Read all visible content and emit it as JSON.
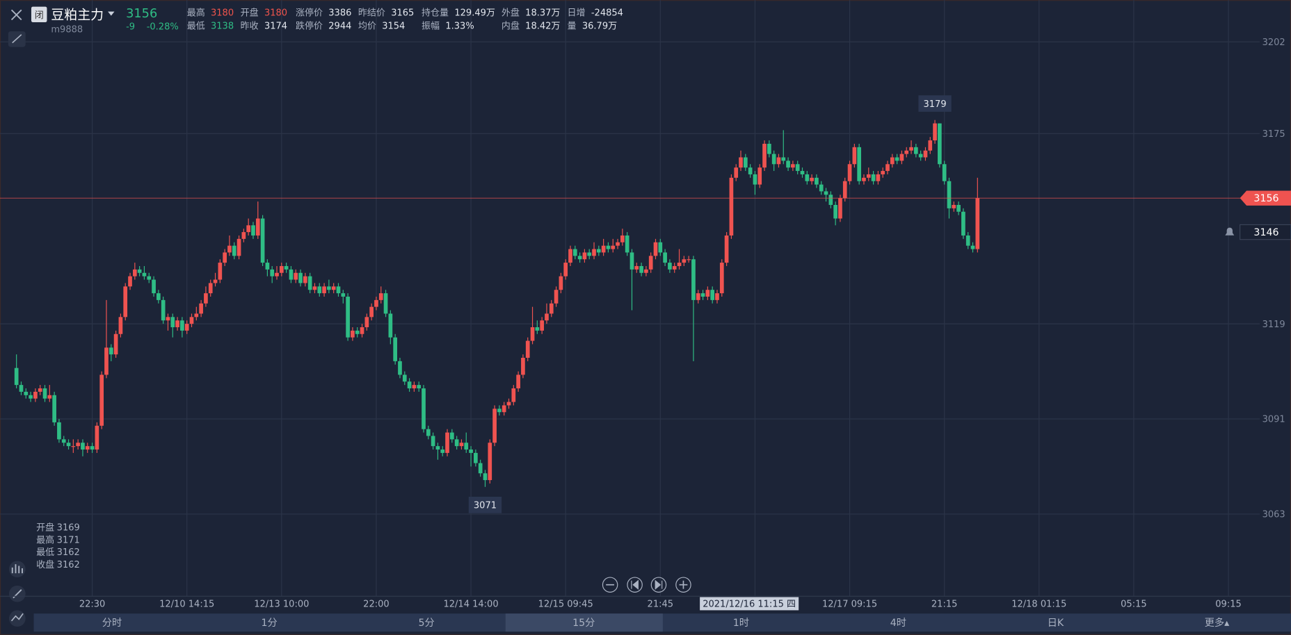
{
  "header": {
    "status": "闭",
    "name": "豆粕主力",
    "code": "m9888",
    "price": "3156",
    "change": "-9",
    "change_pct": "-0.28%",
    "rows": [
      [
        {
          "label": "最高",
          "value": "3180",
          "color": "#f0544c"
        },
        {
          "label": "开盘",
          "value": "3180",
          "color": "#f0544c"
        },
        {
          "label": "涨停价",
          "value": "3386"
        },
        {
          "label": "昨结价",
          "value": "3165"
        },
        {
          "label": "持仓量",
          "value": "129.49万"
        },
        {
          "label": "外盘",
          "value": "18.37万"
        },
        {
          "label": "日增",
          "value": "-24854"
        }
      ],
      [
        {
          "label": "最低",
          "value": "3138",
          "color": "#2fbd85"
        },
        {
          "label": "昨收",
          "value": "3174"
        },
        {
          "label": "跌停价",
          "value": "2944"
        },
        {
          "label": "均价",
          "value": "3154"
        },
        {
          "label": "振幅",
          "value": "1.33%"
        },
        {
          "label": "内盘",
          "value": "18.42万"
        },
        {
          "label": "量",
          "value": "36.79万"
        }
      ]
    ]
  },
  "chart_data": {
    "type": "candlestick",
    "up_color": "#ef5350",
    "down_color": "#2fbd85",
    "ylim": [
      3038.8,
      3214.3
    ],
    "yticks": [
      3202,
      3175,
      3119,
      3091,
      3063
    ],
    "grid": true,
    "time_labels": [
      "22:30",
      "12/10 14:15",
      "12/13 10:00",
      "22:00",
      "12/14 14:00",
      "12/15 09:45",
      "21:45",
      null,
      "12/17 09:15",
      "21:15",
      "12/18 01:15",
      "05:15",
      "09:15"
    ],
    "crosshair_label": "2021/12/16 11:15 四",
    "alert_price": 3146,
    "open": [
      3106,
      3101,
      3099,
      3098,
      3097,
      3099,
      3100,
      3097,
      3098,
      3090,
      3085,
      3084,
      3083,
      3083,
      3084,
      3082,
      3083,
      3082,
      3089,
      3104,
      3112,
      3110,
      3116,
      3121,
      3130,
      3133,
      3135,
      3134,
      3133,
      3132,
      3128,
      3126,
      3120,
      3121,
      3118,
      3120,
      3117,
      3119,
      3121,
      3122,
      3125,
      3128,
      3131,
      3132,
      3137,
      3140,
      3142,
      3139,
      3144,
      3146,
      3148,
      3145,
      3150,
      3137,
      3135,
      3133,
      3134,
      3136,
      3135,
      3132,
      3134,
      3131,
      3133,
      3129,
      3130,
      3128,
      3130,
      3129,
      3130,
      3128,
      3127,
      3115,
      3117,
      3116,
      3118,
      3121,
      3124,
      3126,
      3128,
      3122,
      3115,
      3108,
      3104,
      3102,
      3100,
      3101,
      3100,
      3088,
      3086,
      3083,
      3082,
      3081,
      3087,
      3085,
      3083,
      3084,
      3082,
      3081,
      3078,
      3075,
      3073,
      3084,
      3094,
      3093,
      3095,
      3096,
      3100,
      3104,
      3109,
      3114,
      3118,
      3117,
      3120,
      3122,
      3125,
      3129,
      3133,
      3137,
      3141,
      3139,
      3138,
      3140,
      3139,
      3141,
      3140,
      3142,
      3141,
      3142,
      3143,
      3145,
      3140,
      3135,
      3136,
      3134,
      3135,
      3139,
      3143,
      3140,
      3137,
      3135,
      3136,
      3137,
      3138,
      3138,
      3126,
      3128,
      3127,
      3129,
      3126,
      3128,
      3137,
      3145,
      3162,
      3165,
      3168,
      3165,
      3163,
      3160,
      3165,
      3172,
      3169,
      3166,
      3168,
      3167,
      3165,
      3166,
      3164,
      3163,
      3161,
      3162,
      3160,
      3158,
      3157,
      3154,
      3150,
      3156,
      3161,
      3166,
      3171,
      3161,
      3162,
      3163,
      3161,
      3163,
      3164,
      3166,
      3168,
      3167,
      3169,
      3170,
      3171,
      3169,
      3168,
      3170,
      3173,
      3178,
      3166,
      3161,
      3153,
      3154,
      3152,
      3145,
      3142,
      3141
    ],
    "high": [
      3110,
      3102,
      3100,
      3099,
      3100,
      3101,
      3101,
      3101,
      3099,
      3091,
      3086,
      3085,
      3085,
      3085,
      3085,
      3084,
      3084,
      3090,
      3105,
      3126,
      3113,
      3117,
      3122,
      3131,
      3134,
      3137,
      3136,
      3136,
      3134,
      3133,
      3129,
      3127,
      3122,
      3122,
      3121,
      3121,
      3120,
      3122,
      3124,
      3126,
      3130,
      3132,
      3134,
      3138,
      3141,
      3145,
      3143,
      3145,
      3147,
      3150,
      3149,
      3155,
      3151,
      3138,
      3136,
      3136,
      3137,
      3137,
      3136,
      3135,
      3135,
      3134,
      3134,
      3131,
      3131,
      3131,
      3132,
      3131,
      3131,
      3129,
      3128,
      3118,
      3118,
      3119,
      3122,
      3125,
      3127,
      3130,
      3129,
      3123,
      3116,
      3109,
      3105,
      3103,
      3102,
      3102,
      3101,
      3089,
      3087,
      3084,
      3083,
      3088,
      3088,
      3086,
      3085,
      3087,
      3083,
      3082,
      3079,
      3076,
      3085,
      3095,
      3095,
      3096,
      3097,
      3101,
      3105,
      3110,
      3115,
      3124,
      3120,
      3121,
      3125,
      3126,
      3130,
      3134,
      3138,
      3142,
      3142,
      3140,
      3141,
      3141,
      3143,
      3142,
      3144,
      3143,
      3144,
      3144,
      3147,
      3146,
      3141,
      3137,
      3137,
      3136,
      3140,
      3144,
      3144,
      3141,
      3138,
      3137,
      3141,
      3139,
      3139,
      3139,
      3129,
      3129,
      3130,
      3130,
      3129,
      3138,
      3146,
      3163,
      3166,
      3170,
      3169,
      3166,
      3164,
      3166,
      3173,
      3173,
      3170,
      3169,
      3176,
      3168,
      3167,
      3167,
      3165,
      3164,
      3163,
      3163,
      3161,
      3159,
      3158,
      3155,
      3157,
      3162,
      3167,
      3172,
      3172,
      3163,
      3165,
      3164,
      3164,
      3165,
      3167,
      3169,
      3169,
      3170,
      3171,
      3173,
      3172,
      3170,
      3171,
      3174,
      3179,
      3178,
      3167,
      3162,
      3155,
      3155,
      3153,
      3146,
      3143,
      3162
    ],
    "low": [
      3100,
      3098,
      3097,
      3096,
      3096,
      3098,
      3096,
      3096,
      3089,
      3084,
      3083,
      3082,
      3081,
      3082,
      3080,
      3081,
      3081,
      3081,
      3088,
      3103,
      3108,
      3109,
      3115,
      3120,
      3129,
      3132,
      3133,
      3132,
      3131,
      3127,
      3125,
      3119,
      3117,
      3115,
      3117,
      3115,
      3116,
      3118,
      3120,
      3121,
      3124,
      3127,
      3130,
      3131,
      3136,
      3139,
      3138,
      3138,
      3143,
      3145,
      3144,
      3144,
      3136,
      3133,
      3131,
      3132,
      3133,
      3134,
      3131,
      3131,
      3130,
      3130,
      3128,
      3128,
      3127,
      3127,
      3128,
      3128,
      3127,
      3125,
      3114,
      3114,
      3115,
      3115,
      3117,
      3120,
      3123,
      3125,
      3121,
      3113,
      3107,
      3103,
      3101,
      3099,
      3099,
      3099,
      3087,
      3085,
      3082,
      3079,
      3080,
      3080,
      3084,
      3082,
      3082,
      3081,
      3077,
      3077,
      3074,
      3071,
      3072,
      3083,
      3092,
      3092,
      3094,
      3095,
      3099,
      3103,
      3108,
      3113,
      3116,
      3116,
      3119,
      3121,
      3124,
      3128,
      3132,
      3136,
      3138,
      3137,
      3137,
      3138,
      3138,
      3139,
      3139,
      3140,
      3140,
      3141,
      3142,
      3139,
      3123,
      3134,
      3133,
      3133,
      3134,
      3138,
      3139,
      3136,
      3134,
      3134,
      3135,
      3136,
      3137,
      3108,
      3125,
      3126,
      3126,
      3125,
      3125,
      3127,
      3136,
      3144,
      3161,
      3164,
      3164,
      3162,
      3157,
      3159,
      3164,
      3168,
      3164,
      3165,
      3166,
      3164,
      3164,
      3163,
      3162,
      3160,
      3160,
      3159,
      3157,
      3155,
      3153,
      3148,
      3149,
      3155,
      3160,
      3165,
      3160,
      3160,
      3161,
      3160,
      3160,
      3162,
      3163,
      3165,
      3166,
      3166,
      3168,
      3169,
      3168,
      3167,
      3167,
      3169,
      3172,
      3165,
      3160,
      3150,
      3152,
      3151,
      3144,
      3141,
      3140,
      3140
    ],
    "close": [
      3101,
      3099,
      3098,
      3097,
      3099,
      3100,
      3097,
      3098,
      3090,
      3085,
      3084,
      3083,
      3083,
      3084,
      3082,
      3083,
      3082,
      3089,
      3104,
      3112,
      3110,
      3116,
      3121,
      3130,
      3133,
      3135,
      3134,
      3133,
      3132,
      3128,
      3126,
      3120,
      3121,
      3118,
      3120,
      3117,
      3119,
      3121,
      3122,
      3125,
      3128,
      3131,
      3132,
      3137,
      3140,
      3142,
      3139,
      3144,
      3146,
      3148,
      3145,
      3150,
      3137,
      3135,
      3133,
      3134,
      3136,
      3135,
      3132,
      3134,
      3131,
      3133,
      3129,
      3130,
      3128,
      3130,
      3129,
      3130,
      3128,
      3127,
      3115,
      3117,
      3116,
      3118,
      3121,
      3124,
      3126,
      3128,
      3122,
      3115,
      3108,
      3104,
      3102,
      3100,
      3101,
      3100,
      3088,
      3086,
      3083,
      3082,
      3081,
      3087,
      3085,
      3083,
      3084,
      3082,
      3081,
      3078,
      3075,
      3073,
      3084,
      3094,
      3093,
      3095,
      3096,
      3100,
      3104,
      3109,
      3114,
      3118,
      3117,
      3120,
      3122,
      3125,
      3129,
      3133,
      3137,
      3141,
      3139,
      3138,
      3140,
      3139,
      3141,
      3140,
      3142,
      3141,
      3142,
      3143,
      3145,
      3140,
      3135,
      3136,
      3134,
      3135,
      3139,
      3143,
      3140,
      3137,
      3135,
      3136,
      3137,
      3138,
      3138,
      3126,
      3128,
      3127,
      3129,
      3126,
      3128,
      3137,
      3145,
      3162,
      3165,
      3168,
      3165,
      3163,
      3160,
      3165,
      3172,
      3169,
      3166,
      3168,
      3167,
      3165,
      3166,
      3164,
      3163,
      3161,
      3162,
      3160,
      3158,
      3157,
      3154,
      3150,
      3156,
      3161,
      3166,
      3171,
      3161,
      3162,
      3163,
      3161,
      3163,
      3164,
      3166,
      3168,
      3167,
      3169,
      3170,
      3171,
      3169,
      3168,
      3170,
      3173,
      3178,
      3166,
      3161,
      3153,
      3154,
      3152,
      3145,
      3142,
      3141,
      3156
    ],
    "max_index": 194,
    "min_index": 99,
    "crosshair_info": [
      {
        "label": "开盘",
        "value": "3169"
      },
      {
        "label": "最高",
        "value": "3171"
      },
      {
        "label": "最低",
        "value": "3162"
      },
      {
        "label": "收盘",
        "value": "3162"
      }
    ]
  },
  "tabs": {
    "items": [
      "分时",
      "1分",
      "5分",
      "15分",
      "1时",
      "4时",
      "日K",
      "更多▴"
    ],
    "active": 3
  }
}
